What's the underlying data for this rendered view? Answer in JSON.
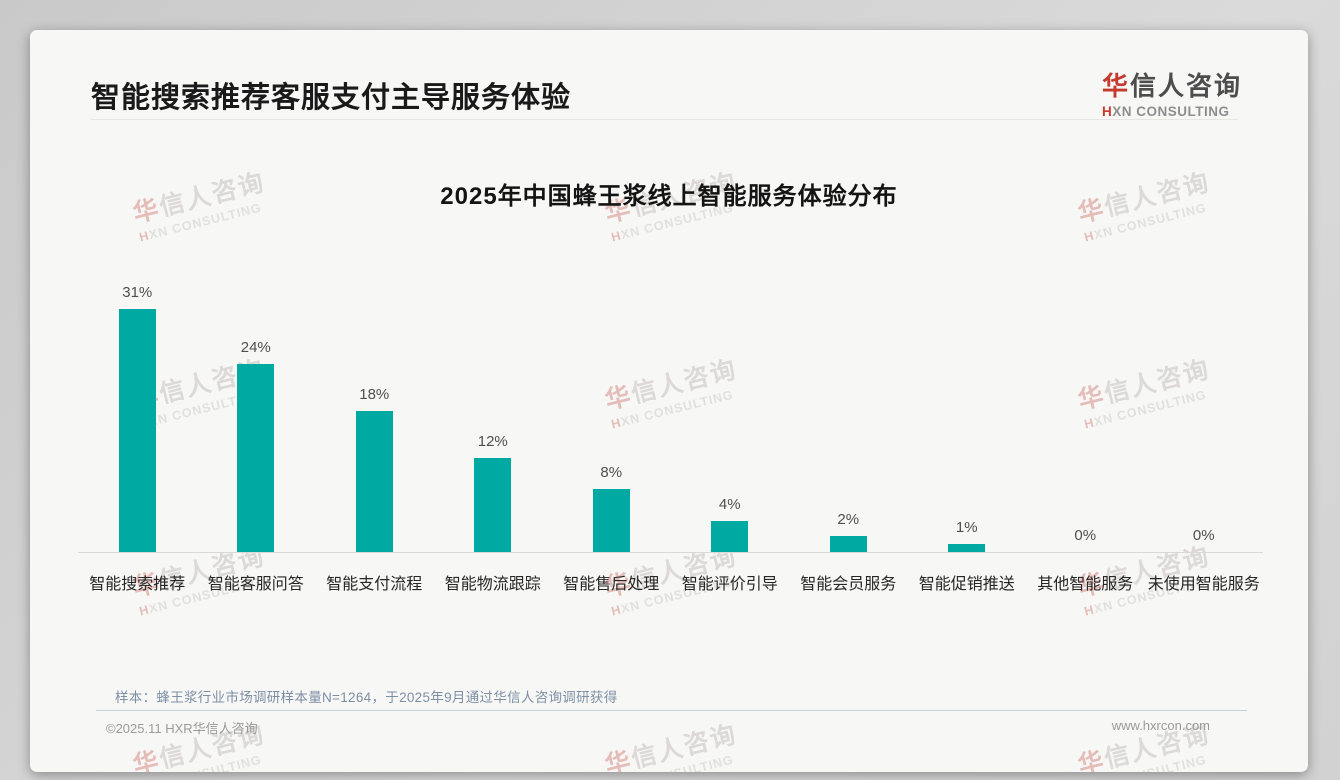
{
  "header": {
    "title": "智能搜索推荐客服支付主导服务体验"
  },
  "logo": {
    "zh_first": "华",
    "zh_rest": "信人咨询",
    "en_first": "H",
    "en_rest": "XN CONSULTING"
  },
  "watermark": {
    "zh_first": "华",
    "zh_rest": "信人咨询",
    "en_first": "H",
    "en_rest": "XN CONSULTING"
  },
  "chart_data": {
    "type": "bar",
    "title": "2025年中国蜂王浆线上智能服务体验分布",
    "categories": [
      "智能搜索推荐",
      "智能客服问答",
      "智能支付流程",
      "智能物流跟踪",
      "智能售后处理",
      "智能评价引导",
      "智能会员服务",
      "智能促销推送",
      "其他智能服务",
      "未使用智能服务"
    ],
    "values": [
      31,
      24,
      18,
      12,
      8,
      4,
      2,
      1,
      0,
      0
    ],
    "data_labels": [
      "31%",
      "24%",
      "18%",
      "12%",
      "8%",
      "4%",
      "2%",
      "1%",
      "0%",
      "0%"
    ],
    "unit": "%",
    "bar_color": "#00a9a1",
    "ylim": [
      0,
      33
    ],
    "grid": false,
    "legend": "none"
  },
  "footnote": "样本：蜂王浆行业市场调研样本量N=1264，于2025年9月通过华信人咨询调研获得",
  "footer": {
    "copyright": "©2025.11 HXR华信人咨询",
    "website": "www.hxrcon.com"
  }
}
